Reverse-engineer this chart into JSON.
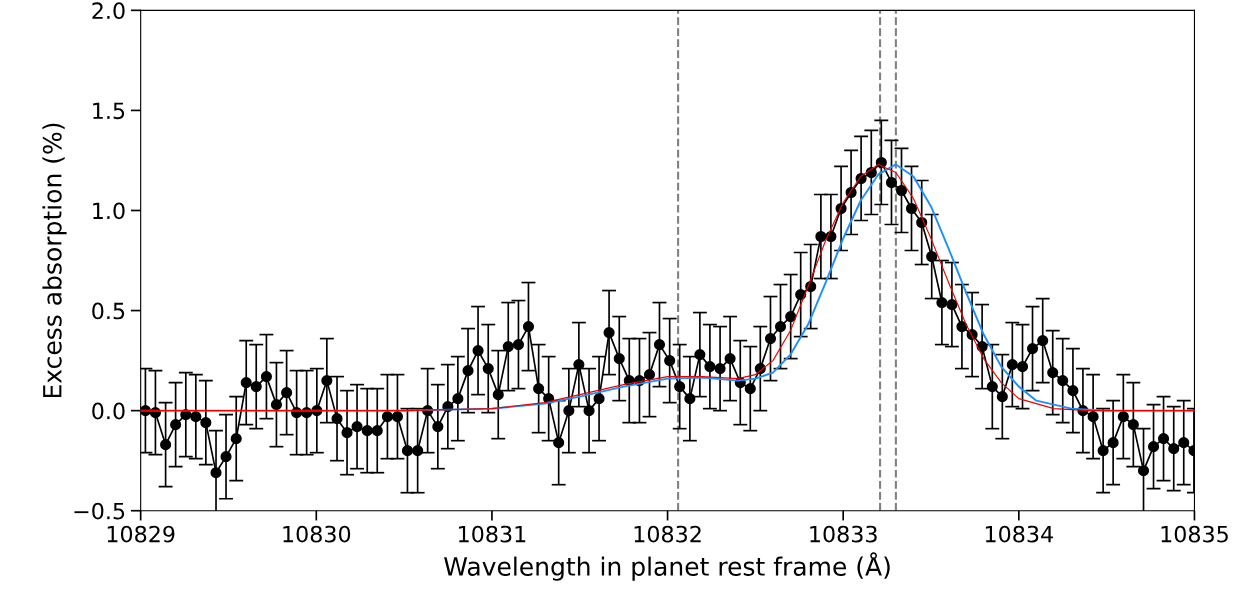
{
  "chart_data": {
    "type": "line",
    "xlabel": "Wavelength in planet rest frame (Å)",
    "ylabel": "Excess absorption (%)",
    "xlim": [
      10829,
      10835
    ],
    "xticks": [
      10829,
      10830,
      10831,
      10832,
      10833,
      10834,
      10835
    ],
    "ylim": [
      -0.5,
      2.0
    ],
    "yticks": [
      {
        "value": -0.5,
        "label": "−0.5"
      },
      {
        "value": 0.0,
        "label": "0.0"
      },
      {
        "value": 0.5,
        "label": "0.5"
      },
      {
        "value": 1.0,
        "label": "1.0"
      },
      {
        "value": 1.5,
        "label": "1.5"
      },
      {
        "value": 2.0,
        "label": "2.0"
      }
    ],
    "grid": false,
    "ref_lines": [
      {
        "axis": "x",
        "value": 10832.06,
        "color": "#808080",
        "line_style": "dashed"
      },
      {
        "axis": "x",
        "value": 10833.21,
        "color": "#808080",
        "line_style": "dashed"
      },
      {
        "axis": "x",
        "value": 10833.3,
        "color": "#808080",
        "line_style": "dashed"
      }
    ],
    "series": [
      {
        "color": "#000000",
        "marker": "circle",
        "line_style": "solid",
        "x": [
          10829.027,
          10829.084,
          10829.142,
          10829.199,
          10829.257,
          10829.314,
          10829.371,
          10829.429,
          10829.486,
          10829.544,
          10829.601,
          10829.658,
          10829.716,
          10829.773,
          10829.831,
          10829.888,
          10829.945,
          10830.003,
          10830.06,
          10830.118,
          10830.175,
          10830.232,
          10830.29,
          10830.347,
          10830.405,
          10830.462,
          10830.519,
          10830.577,
          10830.634,
          10830.692,
          10830.749,
          10830.806,
          10830.864,
          10830.921,
          10830.979,
          10831.036,
          10831.093,
          10831.151,
          10831.208,
          10831.266,
          10831.323,
          10831.38,
          10831.438,
          10831.495,
          10831.553,
          10831.61,
          10831.667,
          10831.725,
          10831.782,
          10831.84,
          10831.897,
          10831.954,
          10832.012,
          10832.069,
          10832.127,
          10832.184,
          10832.241,
          10832.299,
          10832.356,
          10832.414,
          10832.471,
          10832.528,
          10832.586,
          10832.643,
          10832.701,
          10832.758,
          10832.815,
          10832.873,
          10832.93,
          10832.988,
          10833.045,
          10833.102,
          10833.16,
          10833.217,
          10833.275,
          10833.332,
          10833.389,
          10833.447,
          10833.504,
          10833.562,
          10833.619,
          10833.676,
          10833.734,
          10833.791,
          10833.849,
          10833.906,
          10833.963,
          10834.021,
          10834.078,
          10834.136,
          10834.193,
          10834.25,
          10834.308,
          10834.365,
          10834.423,
          10834.48,
          10834.537,
          10834.595,
          10834.652,
          10834.71,
          10834.767,
          10834.824,
          10834.882,
          10834.939,
          10834.997
        ],
        "values": [
          0.0,
          -0.01,
          -0.17,
          -0.07,
          -0.02,
          -0.03,
          -0.06,
          -0.31,
          -0.23,
          -0.14,
          0.14,
          0.12,
          0.17,
          0.03,
          0.09,
          -0.01,
          -0.01,
          0.0,
          0.15,
          -0.04,
          -0.11,
          -0.08,
          -0.1,
          -0.1,
          -0.03,
          -0.03,
          -0.2,
          -0.2,
          0.0,
          -0.08,
          0.02,
          0.06,
          0.2,
          0.3,
          0.21,
          0.08,
          0.32,
          0.33,
          0.42,
          0.11,
          0.06,
          -0.16,
          0.0,
          0.23,
          0.0,
          0.06,
          0.39,
          0.26,
          0.15,
          0.15,
          0.18,
          0.33,
          0.25,
          0.12,
          0.06,
          0.28,
          0.22,
          0.21,
          0.26,
          0.14,
          0.11,
          0.21,
          0.36,
          0.42,
          0.47,
          0.58,
          0.62,
          0.87,
          0.87,
          1.01,
          1.09,
          1.16,
          1.19,
          1.24,
          1.14,
          1.1,
          1.01,
          0.94,
          0.77,
          0.54,
          0.53,
          0.42,
          0.38,
          0.32,
          0.12,
          0.07,
          0.23,
          0.22,
          0.31,
          0.35,
          0.19,
          0.15,
          0.1,
          0.0,
          -0.03,
          -0.2,
          -0.16,
          -0.03,
          -0.07,
          -0.3,
          -0.18,
          -0.14,
          -0.19,
          -0.16,
          -0.2
        ],
        "errors": [
          0.21,
          0.21,
          0.21,
          0.21,
          0.21,
          0.21,
          0.21,
          0.21,
          0.21,
          0.21,
          0.21,
          0.21,
          0.21,
          0.21,
          0.21,
          0.21,
          0.21,
          0.21,
          0.21,
          0.21,
          0.21,
          0.21,
          0.21,
          0.21,
          0.21,
          0.21,
          0.21,
          0.21,
          0.21,
          0.21,
          0.21,
          0.21,
          0.21,
          0.22,
          0.22,
          0.22,
          0.22,
          0.22,
          0.22,
          0.22,
          0.21,
          0.21,
          0.21,
          0.21,
          0.21,
          0.21,
          0.21,
          0.21,
          0.21,
          0.21,
          0.21,
          0.21,
          0.21,
          0.21,
          0.21,
          0.21,
          0.21,
          0.21,
          0.21,
          0.21,
          0.21,
          0.21,
          0.21,
          0.21,
          0.21,
          0.21,
          0.21,
          0.21,
          0.21,
          0.21,
          0.21,
          0.21,
          0.21,
          0.21,
          0.21,
          0.21,
          0.21,
          0.21,
          0.21,
          0.21,
          0.21,
          0.21,
          0.21,
          0.21,
          0.21,
          0.21,
          0.21,
          0.21,
          0.21,
          0.21,
          0.21,
          0.21,
          0.21,
          0.21,
          0.21,
          0.21,
          0.21,
          0.21,
          0.21,
          0.21,
          0.21,
          0.21,
          0.21,
          0.21,
          0.21
        ]
      },
      {
        "color": "#1e90ff",
        "marker": "none",
        "line_style": "solid",
        "x": [
          10829,
          10830.5,
          10831,
          10831.3,
          10831.5,
          10831.75,
          10832,
          10832.2,
          10832.4,
          10832.5,
          10832.6,
          10832.7,
          10832.8,
          10832.9,
          10833,
          10833.1,
          10833.2,
          10833.3,
          10833.4,
          10833.5,
          10833.6,
          10833.7,
          10833.8,
          10833.9,
          10834,
          10834.1,
          10834.3,
          10834.5,
          10835
        ],
        "values": [
          0,
          0,
          0.01,
          0.035,
          0.07,
          0.12,
          0.16,
          0.165,
          0.15,
          0.16,
          0.19,
          0.28,
          0.43,
          0.64,
          0.86,
          1.05,
          1.18,
          1.23,
          1.17,
          1.02,
          0.81,
          0.59,
          0.38,
          0.22,
          0.12,
          0.05,
          0.01,
          0,
          0
        ]
      },
      {
        "color": "#ee0000",
        "marker": "none",
        "line_style": "solid",
        "x": [
          10829,
          10830.5,
          10831,
          10831.3,
          10831.5,
          10831.75,
          10832,
          10832.2,
          10832.4,
          10832.5,
          10832.6,
          10832.7,
          10832.8,
          10832.9,
          10833,
          10833.1,
          10833.2,
          10833.3,
          10833.4,
          10833.5,
          10833.6,
          10833.7,
          10833.8,
          10833.9,
          10834,
          10834.2,
          10834.4,
          10835
        ],
        "values": [
          0,
          0,
          0.01,
          0.04,
          0.08,
          0.13,
          0.17,
          0.17,
          0.16,
          0.18,
          0.25,
          0.4,
          0.62,
          0.85,
          1.04,
          1.17,
          1.23,
          1.19,
          1.06,
          0.86,
          0.64,
          0.43,
          0.26,
          0.14,
          0.06,
          0.01,
          0,
          0
        ]
      }
    ]
  }
}
